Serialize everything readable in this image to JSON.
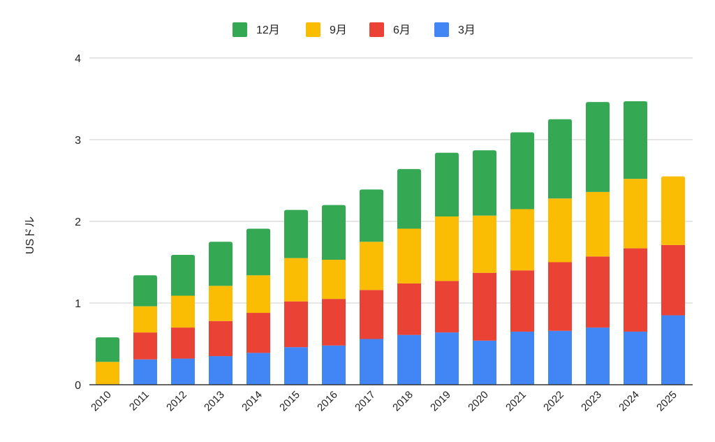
{
  "chart_data": {
    "type": "bar",
    "stacked": true,
    "title": "",
    "xlabel": "",
    "ylabel": "USドル",
    "ylim": [
      0,
      4
    ],
    "yticks": [
      "0",
      "1",
      "2",
      "3",
      "4"
    ],
    "grid": true,
    "legend_position": "top-center",
    "categories": [
      "2010",
      "2011",
      "2012",
      "2013",
      "2014",
      "2015",
      "2016",
      "2017",
      "2018",
      "2019",
      "2020",
      "2021",
      "2022",
      "2023",
      "2024",
      "2025"
    ],
    "series": [
      {
        "name": "3月",
        "color": "#4285f4",
        "values": [
          0,
          0.31,
          0.32,
          0.35,
          0.39,
          0.46,
          0.48,
          0.56,
          0.61,
          0.64,
          0.54,
          0.65,
          0.66,
          0.7,
          0.65,
          0.85
        ]
      },
      {
        "name": "6月",
        "color": "#ea4335",
        "values": [
          0,
          0.33,
          0.38,
          0.43,
          0.49,
          0.56,
          0.57,
          0.6,
          0.63,
          0.63,
          0.83,
          0.75,
          0.84,
          0.87,
          1.02,
          0.86
        ]
      },
      {
        "name": "9月",
        "color": "#fbbc04",
        "values": [
          0.28,
          0.32,
          0.39,
          0.43,
          0.46,
          0.53,
          0.48,
          0.59,
          0.67,
          0.79,
          0.7,
          0.75,
          0.78,
          0.79,
          0.85,
          0.84
        ]
      },
      {
        "name": "12月",
        "color": "#34a853",
        "values": [
          0.3,
          0.38,
          0.5,
          0.54,
          0.57,
          0.59,
          0.67,
          0.64,
          0.73,
          0.78,
          0.8,
          0.94,
          0.97,
          1.1,
          0.95,
          0
        ]
      }
    ],
    "legend_order": [
      "12月",
      "9月",
      "6月",
      "3月"
    ]
  }
}
